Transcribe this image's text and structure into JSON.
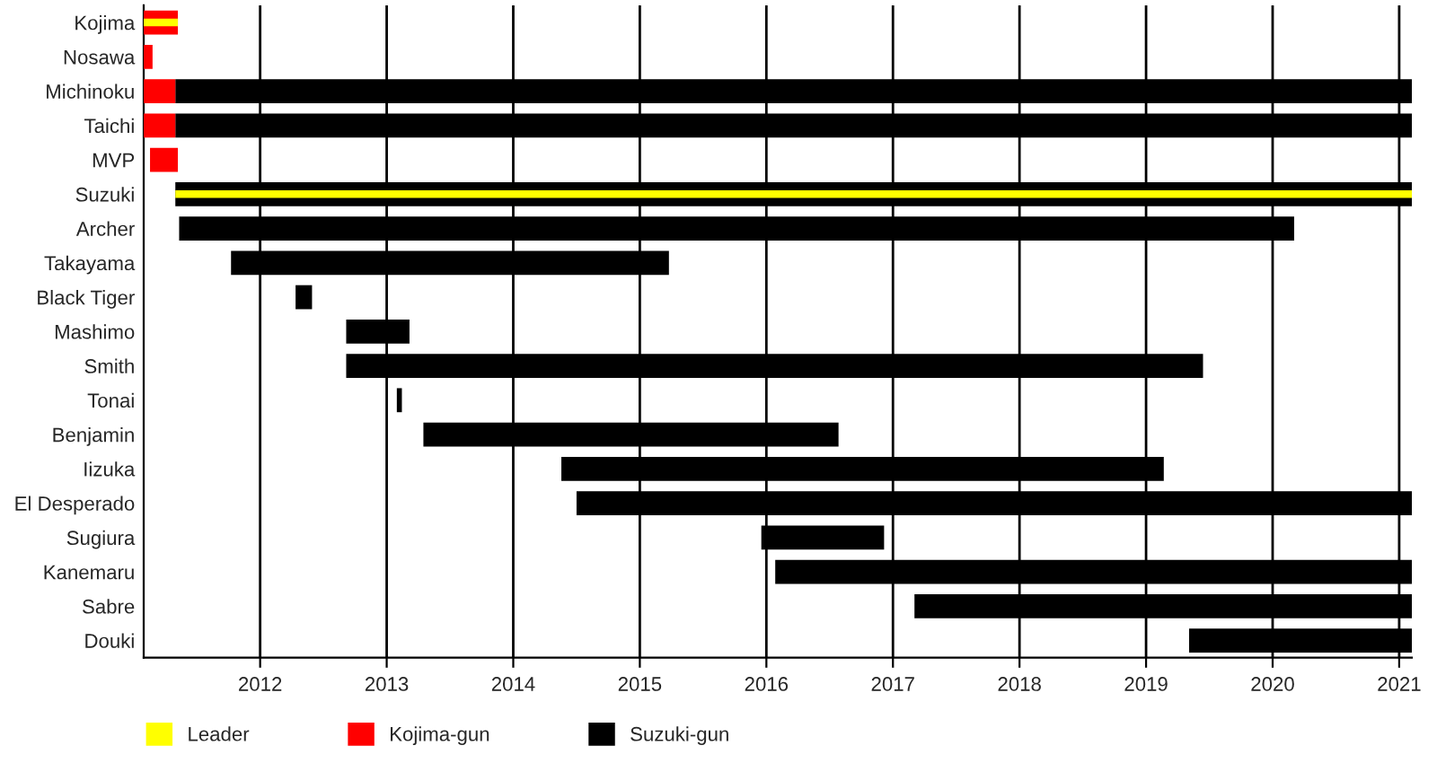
{
  "chart_data": {
    "type": "bar",
    "orientation": "horizontal",
    "categories": [
      "Kojima",
      "Nosawa",
      "Michinoku",
      "Taichi",
      "MVP",
      "Suzuki",
      "Archer",
      "Takayama",
      "Black Tiger",
      "Mashimo",
      "Smith",
      "Tonai",
      "Benjamin",
      "Iizuka",
      "El Desperado",
      "Sugiura",
      "Kanemaru",
      "Sabre",
      "Douki"
    ],
    "series": [
      {
        "name": "Leader",
        "color": "#ffff00",
        "base": [
          2011.08,
          null,
          null,
          null,
          null,
          2011.33,
          null,
          null,
          null,
          null,
          null,
          null,
          null,
          null,
          null,
          null,
          null,
          null,
          null
        ],
        "values": [
          0.27,
          null,
          null,
          null,
          null,
          9.77,
          null,
          null,
          null,
          null,
          null,
          null,
          null,
          null,
          null,
          null,
          null,
          null,
          null
        ]
      },
      {
        "name": "Kojima-gun",
        "color": "#ff0000",
        "base": [
          2011.08,
          2011.08,
          2011.08,
          2011.08,
          2011.13,
          null,
          null,
          null,
          null,
          null,
          null,
          null,
          null,
          null,
          null,
          null,
          null,
          null,
          null
        ],
        "values": [
          0.27,
          0.07,
          0.25,
          0.25,
          0.22,
          null,
          null,
          null,
          null,
          null,
          null,
          null,
          null,
          null,
          null,
          null,
          null,
          null,
          null
        ]
      },
      {
        "name": "Suzuki-gun",
        "color": "#000000",
        "base": [
          null,
          null,
          2011.33,
          2011.33,
          null,
          2011.33,
          2011.36,
          2011.77,
          2012.28,
          2012.68,
          2012.68,
          2013.08,
          2013.29,
          2014.38,
          2014.5,
          2015.96,
          2016.07,
          2017.17,
          2019.34
        ],
        "values": [
          null,
          null,
          9.77,
          9.77,
          null,
          9.77,
          8.81,
          3.46,
          0.13,
          0.5,
          6.77,
          0.04,
          3.28,
          4.76,
          6.6,
          0.97,
          5.03,
          3.93,
          1.76
        ]
      }
    ],
    "xlim": [
      2011.08,
      2021.1
    ],
    "xticks": [
      2012,
      2013,
      2014,
      2015,
      2016,
      2017,
      2018,
      2019,
      2020,
      2021
    ],
    "grid": "x",
    "legend": "bottom left"
  }
}
